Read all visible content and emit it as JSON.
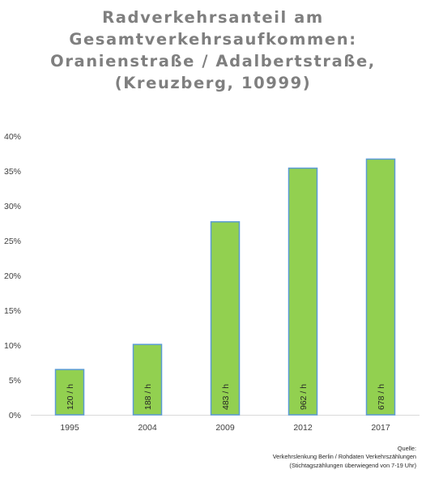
{
  "chart_data": {
    "type": "bar",
    "title_lines": [
      "Radverkehrsanteil am",
      "Gesamtverkehrsaufkommen:",
      "Oranienstraße / Adalbertstraße,",
      "(Kreuzberg, 10999)"
    ],
    "categories": [
      "1995",
      "2004",
      "2009",
      "2012",
      "2017"
    ],
    "values": [
      6.5,
      10.1,
      27.7,
      35.4,
      36.7
    ],
    "bar_labels": [
      "120 / h",
      "188 / h",
      "483 / h",
      "962 / h",
      "678 / h"
    ],
    "y_ticks": [
      "0%",
      "5%",
      "10%",
      "15%",
      "20%",
      "25%",
      "30%",
      "35%",
      "40%"
    ],
    "ylim": [
      0,
      40
    ],
    "xlabel": "",
    "ylabel": "",
    "grid": false,
    "legend": "none",
    "colors": {
      "bar_fill": "#92d050",
      "bar_border": "#5b9bd5",
      "title": "#7f7f7f"
    }
  },
  "source": {
    "lines": [
      "Quelle:",
      "Verkehrslenkung Berlin / Rohdaten Verkehrszählungen",
      "(Stichtagszählungen überwiegend von 7-19 Uhr)"
    ]
  }
}
